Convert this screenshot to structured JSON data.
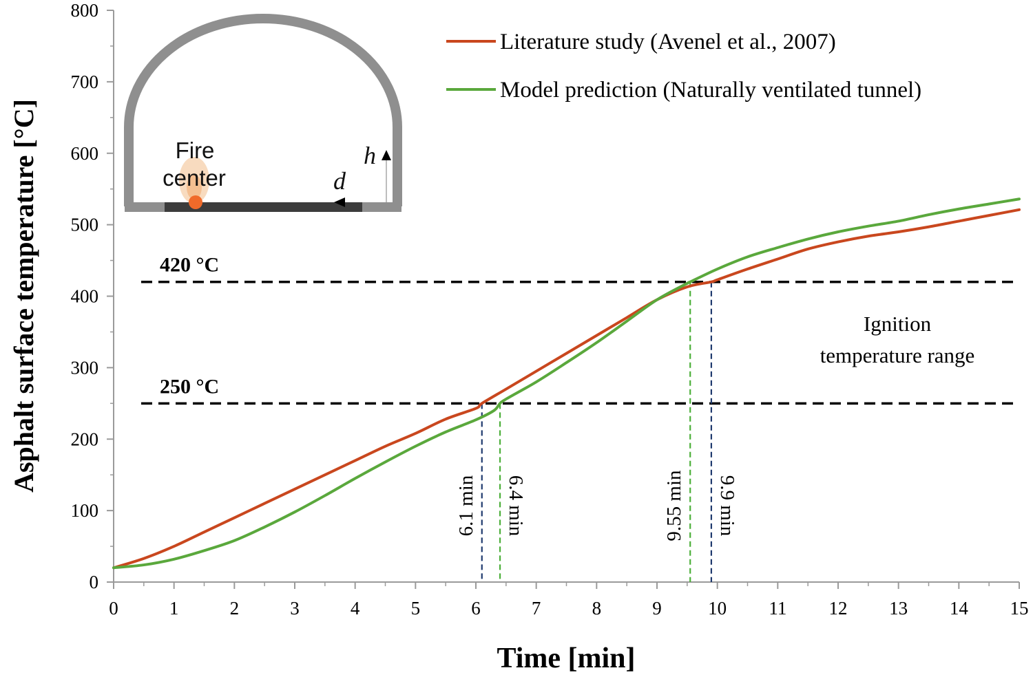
{
  "chart_data": {
    "type": "line",
    "xlabel": "Time [min]",
    "ylabel": "Asphalt surface temperature [°C]",
    "xlim": [
      0,
      15
    ],
    "ylim": [
      0,
      800
    ],
    "x_ticks": [
      "0",
      "1",
      "2",
      "3",
      "4",
      "5",
      "6",
      "7",
      "8",
      "9",
      "10",
      "11",
      "12",
      "13",
      "14",
      "15"
    ],
    "y_ticks": [
      "0",
      "100",
      "200",
      "300",
      "400",
      "500",
      "600",
      "700",
      "800"
    ],
    "grid": false,
    "legend_position": "top-right",
    "series": [
      {
        "name": "Literature study (Avenel et al., 2007)",
        "color": "#c9471e",
        "x": [
          0,
          0.5,
          1,
          1.5,
          2,
          2.5,
          3,
          3.5,
          4,
          4.5,
          5,
          5.5,
          6,
          6.1,
          6.5,
          7,
          7.5,
          8,
          8.5,
          9,
          9.5,
          9.9,
          10,
          10.5,
          11,
          11.5,
          12,
          12.5,
          13,
          13.5,
          14,
          14.5,
          15
        ],
        "y": [
          20,
          33,
          50,
          70,
          90,
          110,
          130,
          150,
          170,
          190,
          208,
          228,
          243,
          250,
          270,
          295,
          320,
          345,
          370,
          395,
          413,
          420,
          423,
          438,
          452,
          466,
          476,
          484,
          490,
          497,
          505,
          513,
          521
        ]
      },
      {
        "name": "Model prediction (Naturally ventilated tunnel)",
        "color": "#5aa83c",
        "x": [
          0,
          0.5,
          1,
          1.5,
          2,
          2.5,
          3,
          3.5,
          4,
          4.5,
          5,
          5.5,
          6,
          6.3,
          6.4,
          6.5,
          7,
          7.5,
          8,
          8.5,
          9,
          9.5,
          9.55,
          10,
          10.5,
          11,
          11.5,
          12,
          12.5,
          13,
          13.5,
          14,
          14.5,
          15
        ],
        "y": [
          20,
          24,
          32,
          44,
          58,
          77,
          98,
          121,
          145,
          168,
          190,
          210,
          227,
          240,
          250,
          256,
          280,
          307,
          335,
          365,
          395,
          418,
          420,
          438,
          455,
          468,
          480,
          490,
          498,
          505,
          514,
          522,
          529,
          536
        ]
      }
    ],
    "reference_lines": [
      {
        "value": 420,
        "label": "420 °C"
      },
      {
        "value": 250,
        "label": "250 °C"
      }
    ],
    "crossings": [
      {
        "x": 6.1,
        "y": 250,
        "label": "6.1 min",
        "series": "Literature study (Avenel et al., 2007)"
      },
      {
        "x": 6.4,
        "y": 250,
        "label": "6.4 min",
        "series": "Model prediction (Naturally ventilated tunnel)"
      },
      {
        "x": 9.55,
        "y": 420,
        "label": "9.55 min",
        "series": "Model prediction (Naturally ventilated tunnel)"
      },
      {
        "x": 9.9,
        "y": 420,
        "label": "9.9 min",
        "series": "Literature study (Avenel et al., 2007)"
      }
    ],
    "annotations": {
      "ignition_line1": "Ignition",
      "ignition_line2": "temperature range"
    }
  },
  "inset": {
    "fire_label_line1": "Fire",
    "fire_label_line2": "center",
    "h_label": "h",
    "d_label": "d"
  },
  "colors": {
    "literature": "#c9471e",
    "model": "#5aa83c",
    "crossing_literature": "#1f3a6e",
    "crossing_model": "#4caf3a",
    "axis": "#9a9a9a"
  }
}
